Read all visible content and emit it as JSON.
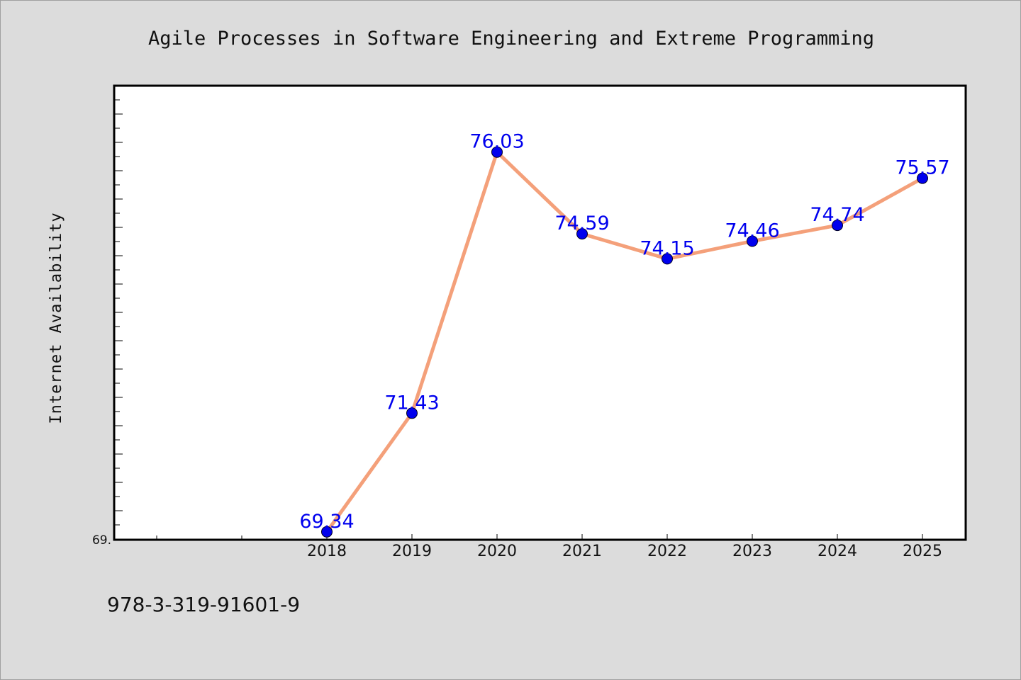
{
  "chart_data": {
    "type": "line",
    "title": "Agile Processes in Software Engineering and Extreme Programming",
    "xlabel": "",
    "ylabel": "Internet Availability",
    "categories": [
      "2018",
      "2019",
      "2020",
      "2021",
      "2022",
      "2023",
      "2024",
      "2025"
    ],
    "series": [
      {
        "values": [
          69.34,
          71.43,
          76.03,
          74.59,
          74.15,
          74.46,
          74.74,
          75.57
        ]
      }
    ],
    "data_labels": [
      "69.34",
      "71.43",
      "76.03",
      "74.59",
      "74.15",
      "74.46",
      "74.74",
      "75.57"
    ],
    "y_tick_label": "69.",
    "ylim": [
      69.2,
      77.2
    ],
    "grid": false,
    "legend": "none",
    "colors": {
      "line": "#f4a07a",
      "marker": "#0000ee",
      "label": "#0000ee",
      "plot_bg": "#ffffff",
      "page_bg": "#dcdcdc"
    }
  },
  "footer": {
    "isbn": "978-3-319-91601-9"
  }
}
